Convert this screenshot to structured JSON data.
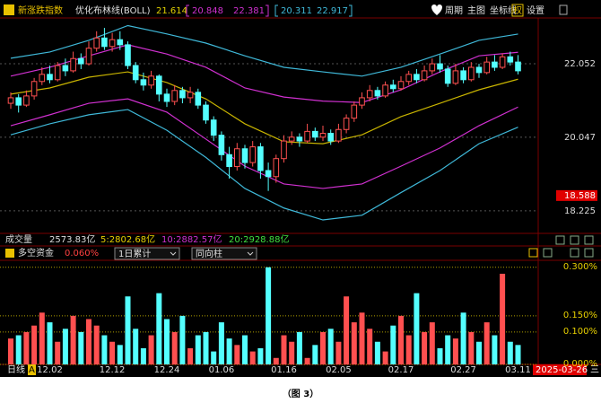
{
  "chart_data": [
    {
      "type": "candlestick",
      "title": "新涨跌指数",
      "indicator": "优化布林线(BOLL)",
      "log_scale": true,
      "categories": [
        null,
        null,
        null,
        null,
        null,
        "12.02",
        null,
        null,
        null,
        null,
        null,
        null,
        null,
        "12.12",
        null,
        null,
        null,
        null,
        null,
        null,
        "12.24",
        null,
        null,
        null,
        null,
        null,
        null,
        "01.06",
        null,
        null,
        null,
        null,
        null,
        null,
        null,
        "01.16",
        null,
        null,
        null,
        null,
        null,
        null,
        "02.05",
        null,
        null,
        null,
        null,
        null,
        null,
        null,
        "02.17",
        null,
        null,
        null,
        null,
        null,
        null,
        null,
        "02.27",
        null,
        null,
        null,
        null,
        null,
        null,
        "03.11"
      ],
      "open": [
        20.95,
        21.1,
        20.9,
        21.15,
        21.55,
        21.75,
        21.6,
        22.0,
        21.85,
        22.2,
        22.05,
        22.5,
        22.8,
        22.55,
        22.75,
        22.6,
        22.0,
        21.6,
        21.45,
        21.7,
        21.2,
        21.0,
        21.3,
        21.1,
        21.25,
        20.9,
        20.5,
        20.1,
        19.6,
        19.3,
        19.75,
        19.4,
        19.8,
        19.2,
        19.05,
        19.5,
        19.95,
        20.05,
        19.95,
        20.2,
        20.05,
        20.15,
        19.95,
        20.25,
        20.55,
        20.9,
        21.1,
        21.3,
        21.15,
        21.45,
        21.35,
        21.55,
        21.75,
        21.6,
        21.85,
        22.05,
        21.9,
        21.5,
        21.85,
        21.6,
        21.95,
        21.8,
        22.1,
        21.95,
        22.25,
        22.1
      ],
      "close": [
        21.1,
        20.9,
        21.15,
        21.55,
        21.75,
        21.6,
        22.0,
        21.85,
        22.2,
        22.05,
        22.5,
        22.8,
        22.55,
        22.75,
        22.6,
        22.0,
        21.6,
        21.45,
        21.7,
        21.2,
        21.0,
        21.3,
        21.1,
        21.25,
        20.9,
        20.5,
        20.1,
        19.6,
        19.3,
        19.75,
        19.4,
        19.8,
        19.2,
        19.05,
        19.5,
        19.95,
        20.05,
        19.95,
        20.2,
        20.05,
        20.15,
        19.95,
        20.25,
        20.55,
        20.9,
        21.1,
        21.3,
        21.15,
        21.45,
        21.35,
        21.55,
        21.75,
        21.6,
        21.85,
        22.05,
        21.9,
        21.5,
        21.85,
        21.6,
        21.95,
        21.8,
        22.1,
        21.95,
        22.25,
        22.1,
        21.85
      ],
      "high": [
        21.25,
        21.2,
        21.3,
        21.65,
        21.95,
        22.0,
        22.1,
        22.2,
        22.4,
        22.35,
        22.7,
        23.0,
        23.1,
        22.95,
        23.0,
        22.7,
        22.1,
        21.8,
        21.85,
        21.75,
        21.35,
        21.45,
        21.4,
        21.4,
        21.35,
        21.0,
        20.6,
        20.2,
        19.8,
        19.9,
        19.85,
        19.95,
        19.9,
        19.4,
        19.6,
        20.1,
        20.2,
        20.15,
        20.4,
        20.3,
        20.35,
        20.25,
        20.4,
        20.65,
        21.0,
        21.25,
        21.45,
        21.4,
        21.55,
        21.6,
        21.7,
        21.85,
        21.9,
        22.0,
        22.2,
        22.3,
        22.0,
        22.05,
        21.95,
        22.1,
        22.05,
        22.25,
        22.3,
        22.35,
        22.4,
        22.3
      ],
      "low": [
        20.8,
        20.7,
        20.85,
        21.05,
        21.45,
        21.5,
        21.55,
        21.7,
        21.8,
        21.9,
        22.0,
        22.4,
        22.45,
        22.4,
        22.45,
        21.9,
        21.5,
        21.3,
        21.35,
        21.0,
        20.85,
        20.9,
        20.95,
        20.95,
        20.8,
        20.4,
        19.95,
        19.45,
        19.0,
        19.2,
        19.25,
        19.3,
        19.0,
        18.7,
        18.9,
        19.4,
        19.85,
        19.8,
        19.9,
        19.95,
        19.95,
        19.85,
        19.9,
        20.15,
        20.45,
        20.8,
        21.0,
        21.05,
        21.1,
        21.25,
        21.3,
        21.45,
        21.5,
        21.55,
        21.75,
        21.8,
        21.4,
        21.45,
        21.5,
        21.55,
        21.65,
        21.75,
        21.85,
        21.9,
        22.0,
        21.75
      ],
      "up_color": "#ff5050",
      "down_color": "#54ffff",
      "series": [
        {
          "color": "#3fb8d8",
          "x": [
            0,
            5,
            10,
            15,
            20,
            25,
            30,
            35,
            40,
            45,
            50,
            55,
            60,
            65
          ],
          "values": [
            22.21,
            22.39,
            22.73,
            23.17,
            22.92,
            22.65,
            22.28,
            21.95,
            21.82,
            21.7,
            21.95,
            22.33,
            22.73,
            22.917
          ]
        },
        {
          "color": "#d030d0",
          "x": [
            0,
            5,
            10,
            15,
            20,
            25,
            30,
            35,
            40,
            45,
            50,
            55,
            60,
            65
          ],
          "values": [
            21.7,
            21.95,
            22.28,
            22.6,
            22.33,
            21.95,
            21.37,
            21.12,
            21.01,
            20.97,
            21.32,
            21.82,
            22.28,
            22.381
          ]
        },
        {
          "color": "#c8b400",
          "x": [
            0,
            5,
            10,
            15,
            20,
            25,
            30,
            35,
            40,
            45,
            50,
            55,
            60,
            65
          ],
          "values": [
            21.2,
            21.37,
            21.67,
            21.82,
            21.52,
            21.07,
            20.4,
            19.93,
            19.88,
            20.11,
            20.59,
            20.95,
            21.32,
            21.614
          ]
        },
        {
          "color": "#d030d0",
          "x": [
            0,
            5,
            10,
            15,
            20,
            25,
            30,
            35,
            40,
            45,
            50,
            55,
            60,
            65
          ],
          "values": [
            20.35,
            20.64,
            20.95,
            21.07,
            20.71,
            20.0,
            19.31,
            18.87,
            18.76,
            18.87,
            19.31,
            19.77,
            20.35,
            20.848
          ]
        },
        {
          "color": "#3fb8d8",
          "x": [
            0,
            5,
            10,
            15,
            20,
            25,
            30,
            35,
            40,
            45,
            50,
            55,
            60,
            65
          ],
          "values": [
            20.11,
            20.4,
            20.64,
            20.78,
            20.23,
            19.53,
            18.76,
            18.29,
            18.01,
            18.12,
            18.66,
            19.2,
            19.88,
            20.311
          ]
        }
      ],
      "ylim": [
        17.74,
        23.4
      ],
      "yticks": [
        18.225,
        20.047,
        22.052
      ],
      "grid": true,
      "marker": 18.588
    },
    {
      "type": "bar",
      "title": "多空资金",
      "current": "0.060%",
      "controls": [
        "1日累计",
        "同向柱"
      ],
      "values": [
        0.08,
        0.09,
        0.1,
        0.12,
        0.16,
        0.13,
        0.07,
        0.11,
        0.15,
        0.1,
        0.14,
        0.12,
        0.09,
        0.07,
        0.06,
        0.21,
        0.11,
        0.05,
        0.09,
        0.22,
        0.14,
        0.1,
        0.15,
        0.05,
        0.09,
        0.1,
        0.04,
        0.13,
        0.08,
        0.06,
        0.09,
        0.04,
        0.05,
        0.3,
        0.02,
        0.09,
        0.07,
        0.1,
        0.02,
        0.06,
        0.1,
        0.11,
        0.07,
        0.21,
        0.13,
        0.16,
        0.11,
        0.07,
        0.04,
        0.12,
        0.15,
        0.09,
        0.22,
        0.1,
        0.13,
        0.05,
        0.09,
        0.08,
        0.16,
        0.1,
        0.07,
        0.13,
        0.09,
        0.28,
        0.07,
        0.06
      ],
      "ylim": [
        0,
        0.316
      ],
      "yticks": [
        {
          "value": 0,
          "label": "0.000%"
        },
        {
          "value": 0.1,
          "label": "0.100%"
        },
        {
          "value": 0.15,
          "label": "0.150%"
        },
        {
          "value": 0.3,
          "label": "0.300%"
        }
      ],
      "grid": true
    }
  ],
  "ui": {
    "toolbar": [
      "周期",
      "主图",
      "坐标线",
      "权",
      "设置"
    ],
    "volume_header": {
      "label": "成交量",
      "total": "2573.83亿",
      "ma5": "5:2802.68亿",
      "ma10": "10:2882.57亿",
      "ma20": "20:2928.88亿"
    },
    "period": "日线",
    "adjust": "A",
    "date": "2025-03-26",
    "weekday": "三"
  },
  "caption": "（图 3）"
}
